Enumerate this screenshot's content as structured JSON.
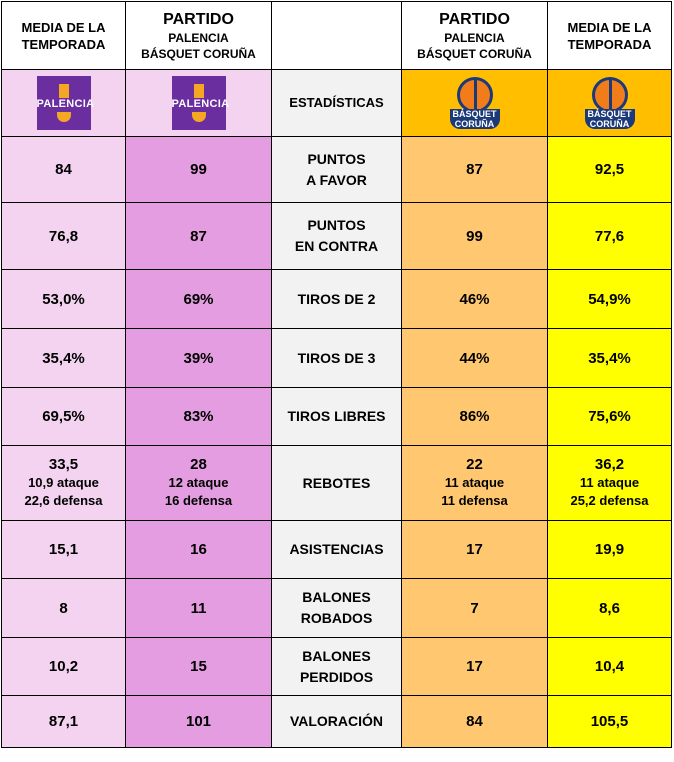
{
  "header": {
    "col1": [
      "MEDIA DE LA",
      "TEMPORADA"
    ],
    "col2": {
      "title": "PARTIDO",
      "lines": [
        "PALENCIA",
        "BÁSQUET CORUÑA"
      ]
    },
    "col4": {
      "title": "PARTIDO",
      "lines": [
        "PALENCIA",
        "BÁSQUET CORUÑA"
      ]
    },
    "col5": [
      "MEDIA DE LA",
      "TEMPORADA"
    ]
  },
  "logos": {
    "palencia_text": "PALENCIA",
    "coruna_text": [
      "BÁSQUET",
      "CORUÑA"
    ],
    "stats_label": "ESTADÍSTICAS"
  },
  "rows": [
    {
      "stat": [
        "PUNTOS",
        "A FAVOR"
      ],
      "pal_avg": "84",
      "pal_game": "99",
      "cor_game": "87",
      "cor_avg": "92,5"
    },
    {
      "stat": [
        "PUNTOS",
        "EN CONTRA"
      ],
      "pal_avg": "76,8",
      "pal_game": "87",
      "cor_game": "99",
      "cor_avg": "77,6"
    },
    {
      "stat": [
        "TIROS DE 2"
      ],
      "pal_avg": "53,0%",
      "pal_game": "69%",
      "cor_game": "46%",
      "cor_avg": "54,9%"
    },
    {
      "stat": [
        "TIROS DE 3"
      ],
      "pal_avg": "35,4%",
      "pal_game": "39%",
      "cor_game": "44%",
      "cor_avg": "35,4%"
    },
    {
      "stat": [
        "TIROS LIBRES"
      ],
      "pal_avg": "69,5%",
      "pal_game": "83%",
      "cor_game": "86%",
      "cor_avg": "75,6%"
    },
    {
      "stat": [
        "REBOTES"
      ],
      "pal_avg": [
        "33,5",
        "10,9 ataque",
        "22,6 defensa"
      ],
      "pal_game": [
        "28",
        "12 ataque",
        "16 defensa"
      ],
      "cor_game": [
        "22",
        "11 ataque",
        "11 defensa"
      ],
      "cor_avg": [
        "36,2",
        "11 ataque",
        "25,2 defensa"
      ]
    },
    {
      "stat": [
        "ASISTENCIAS"
      ],
      "pal_avg": "15,1",
      "pal_game": "16",
      "cor_game": "17",
      "cor_avg": "19,9"
    },
    {
      "stat": [
        "BALONES",
        "ROBADOS"
      ],
      "pal_avg": "8",
      "pal_game": "11",
      "cor_game": "7",
      "cor_avg": "8,6"
    },
    {
      "stat": [
        "BALONES",
        "PERDIDOS"
      ],
      "pal_avg": "10,2",
      "pal_game": "15",
      "cor_game": "17",
      "cor_avg": "10,4"
    },
    {
      "stat": [
        "VALORACIÓN"
      ],
      "pal_avg": "87,1",
      "pal_game": "101",
      "cor_game": "84",
      "cor_avg": "105,5"
    }
  ]
}
